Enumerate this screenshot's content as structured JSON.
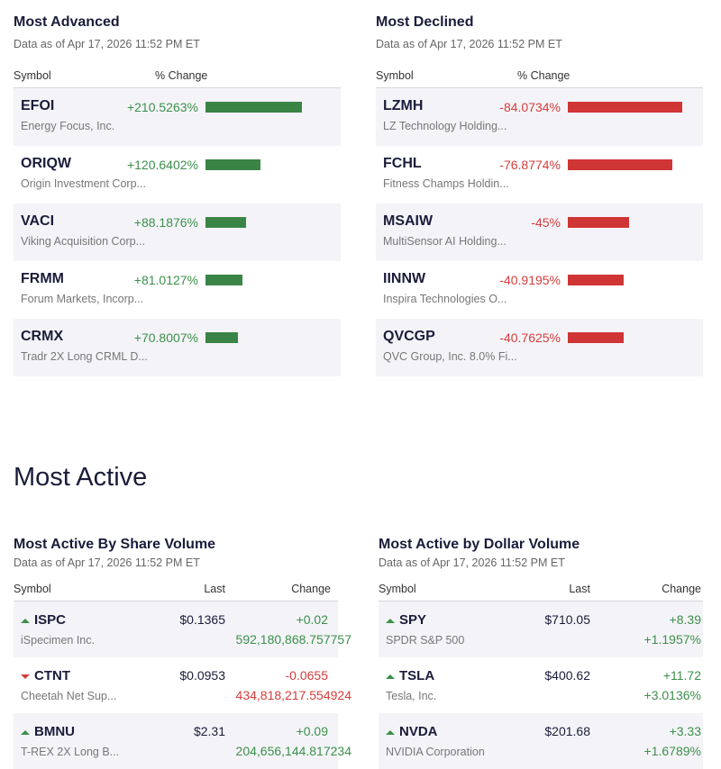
{
  "advanced": {
    "title": "Most Advanced",
    "as_of": "Data as of Apr 17, 2026 11:52 PM ET",
    "col_symbol": "Symbol",
    "col_change": "% Change",
    "color": "#3a8545",
    "rows": [
      {
        "symbol": "EFOI",
        "name": "Energy Focus, Inc.",
        "change": "+210.5263%",
        "value": 210.5263
      },
      {
        "symbol": "ORIQW",
        "name": "Origin Investment Corp...",
        "change": "+120.6402%",
        "value": 120.6402
      },
      {
        "symbol": "VACI",
        "name": "Viking Acquisition Corp...",
        "change": "+88.1876%",
        "value": 88.1876
      },
      {
        "symbol": "FRMM",
        "name": "Forum Markets, Incorp...",
        "change": "+81.0127%",
        "value": 81.0127
      },
      {
        "symbol": "CRMX",
        "name": "Tradr 2X Long CRML D...",
        "change": "+70.8007%",
        "value": 70.8007
      }
    ]
  },
  "declined": {
    "title": "Most Declined",
    "as_of": "Data as of Apr 17, 2026 11:52 PM ET",
    "col_symbol": "Symbol",
    "col_change": "% Change",
    "color": "#d03535",
    "rows": [
      {
        "symbol": "LZMH",
        "name": "LZ Technology Holding...",
        "change": "-84.0734%",
        "value": 84.0734
      },
      {
        "symbol": "FCHL",
        "name": "Fitness Champs Holdin...",
        "change": "-76.8774%",
        "value": 76.8774
      },
      {
        "symbol": "MSAIW",
        "name": "MultiSensor AI Holding...",
        "change": "-45%",
        "value": 45
      },
      {
        "symbol": "IINNW",
        "name": "Inspira Technologies O...",
        "change": "-40.9195%",
        "value": 40.9195
      },
      {
        "symbol": "QVCGP",
        "name": "QVC Group, Inc. 8.0% Fi...",
        "change": "-40.7625%",
        "value": 40.7625
      }
    ]
  },
  "most_active_title": "Most Active",
  "share_volume": {
    "title": "Most Active By Share Volume",
    "as_of": "Data as of Apr 17, 2026 11:52 PM ET",
    "col_symbol": "Symbol",
    "col_last": "Last",
    "col_change": "Change",
    "rows": [
      {
        "symbol": "ISPC",
        "name": "iSpecimen Inc.",
        "last": "$0.1365",
        "change": "+0.02",
        "extra": "592,180,868.757757",
        "dir": "up"
      },
      {
        "symbol": "CTNT",
        "name": "Cheetah Net Sup...",
        "last": "$0.0953",
        "change": "-0.0655",
        "extra": "434,818,217.554924",
        "dir": "down"
      },
      {
        "symbol": "BMNU",
        "name": "T-REX 2X Long B...",
        "last": "$2.31",
        "change": "+0.09",
        "extra": "204,656,144.817234",
        "dir": "up"
      }
    ]
  },
  "dollar_volume": {
    "title": "Most Active by Dollar Volume",
    "as_of": "Data as of Apr 17, 2026 11:52 PM ET",
    "col_symbol": "Symbol",
    "col_last": "Last",
    "col_change": "Change",
    "rows": [
      {
        "symbol": "SPY",
        "name": "SPDR S&P 500",
        "last": "$710.05",
        "change": "+8.39",
        "extra": "+1.1957%",
        "dir": "up"
      },
      {
        "symbol": "TSLA",
        "name": "Tesla, Inc.",
        "last": "$400.62",
        "change": "+11.72",
        "extra": "+3.0136%",
        "dir": "up"
      },
      {
        "symbol": "NVDA",
        "name": "NVIDIA Corporation",
        "last": "$201.68",
        "change": "+3.33",
        "extra": "+1.6789%",
        "dir": "up"
      }
    ]
  }
}
